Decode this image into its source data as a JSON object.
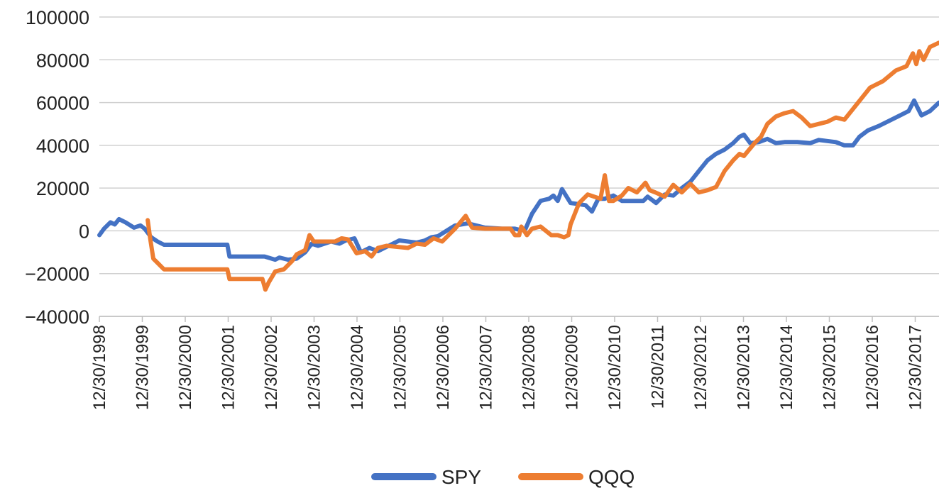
{
  "chart_data": {
    "type": "line",
    "title": "",
    "xlabel": "",
    "ylabel": "",
    "ylim": [
      -40000,
      100000
    ],
    "y_ticks": [
      100000,
      80000,
      60000,
      40000,
      20000,
      0,
      -20000,
      -40000
    ],
    "y_tick_labels": [
      "100000",
      "80000",
      "60000",
      "40000",
      "20000",
      "0",
      "−20000",
      "−40000"
    ],
    "x_tick_labels": [
      "12/30/1998",
      "12/30/1999",
      "12/30/2000",
      "12/30/2001",
      "12/30/2002",
      "12/30/2003",
      "12/30/2004",
      "12/30/2005",
      "12/30/2006",
      "12/30/2007",
      "12/30/2008",
      "12/30/2009",
      "12/30/2010",
      "12/30/2011",
      "12/30/2012",
      "12/30/2013",
      "12/30/2014",
      "12/30/2015",
      "12/30/2016",
      "12/30/2017"
    ],
    "xlim": [
      1998.99,
      2018.61
    ],
    "grid": true,
    "legend_position": "bottom",
    "series": [
      {
        "name": "SPY",
        "color": "#4472C4",
        "x": [
          1998.99,
          1999.1,
          1999.25,
          1999.35,
          1999.45,
          1999.6,
          1999.8,
          1999.95,
          2000.05,
          2000.2,
          2000.35,
          2000.5,
          2001.0,
          2001.5,
          2001.98,
          2002.03,
          2002.3,
          2002.6,
          2002.85,
          2003.1,
          2003.2,
          2003.4,
          2003.6,
          2003.8,
          2003.95,
          2004.1,
          2004.4,
          2004.6,
          2004.75,
          2004.95,
          2005.1,
          2005.3,
          2005.5,
          2005.8,
          2006.0,
          2006.2,
          2006.4,
          2006.6,
          2006.75,
          2006.9,
          2007.1,
          2007.3,
          2007.6,
          2008.0,
          2008.4,
          2008.7,
          2008.8,
          2008.95,
          2009.1,
          2009.3,
          2009.5,
          2009.6,
          2009.7,
          2009.8,
          2010.0,
          2010.2,
          2010.35,
          2010.5,
          2010.65,
          2010.8,
          2011.0,
          2011.2,
          2011.4,
          2011.55,
          2011.7,
          2011.8,
          2012.0,
          2012.2,
          2012.4,
          2012.6,
          2012.8,
          2013.0,
          2013.2,
          2013.4,
          2013.6,
          2013.8,
          2013.95,
          2014.05,
          2014.2,
          2014.4,
          2014.6,
          2014.8,
          2015.0,
          2015.3,
          2015.6,
          2015.8,
          2016.0,
          2016.2,
          2016.4,
          2016.6,
          2016.75,
          2016.95,
          2017.2,
          2017.5,
          2017.9,
          2018.03,
          2018.1,
          2018.2,
          2018.4,
          2018.61
        ],
        "values": [
          -2000,
          1000,
          4000,
          3000,
          5500,
          4000,
          1500,
          2500,
          1000,
          -3000,
          -5000,
          -6500,
          -6500,
          -6500,
          -6500,
          -12000,
          -12000,
          -12000,
          -12000,
          -13500,
          -12500,
          -13500,
          -13000,
          -10000,
          -6000,
          -7000,
          -5000,
          -6000,
          -4500,
          -3500,
          -10000,
          -8000,
          -9500,
          -6500,
          -4500,
          -5000,
          -5500,
          -4500,
          -3000,
          -2500,
          0,
          2500,
          3500,
          1500,
          1000,
          1000,
          500,
          1000,
          8000,
          14000,
          15000,
          16500,
          14000,
          19500,
          13000,
          12500,
          12000,
          9000,
          15000,
          15000,
          16500,
          14000,
          14000,
          14000,
          14000,
          16000,
          13000,
          17000,
          16500,
          20000,
          23000,
          28000,
          33000,
          36000,
          38000,
          41000,
          44000,
          45000,
          41000,
          41500,
          43000,
          41000,
          41500,
          41500,
          41000,
          42500,
          42000,
          41500,
          40000,
          40000,
          44000,
          47000,
          49000,
          52000,
          56000,
          61000,
          58000,
          54000,
          56000,
          60000
        ]
      },
      {
        "name": "QQQ",
        "color": "#ED7D31",
        "x": [
          2000.12,
          2000.18,
          2000.25,
          2000.35,
          2000.5,
          2001.0,
          2001.5,
          2001.98,
          2002.03,
          2002.3,
          2002.6,
          2002.8,
          2002.87,
          2002.95,
          2003.1,
          2003.3,
          2003.5,
          2003.6,
          2003.8,
          2003.9,
          2004.0,
          2004.2,
          2004.5,
          2004.65,
          2004.8,
          2005.0,
          2005.2,
          2005.35,
          2005.5,
          2005.7,
          2005.95,
          2006.2,
          2006.4,
          2006.6,
          2006.8,
          2007.0,
          2007.3,
          2007.55,
          2007.7,
          2008.0,
          2008.3,
          2008.6,
          2008.7,
          2008.8,
          2008.85,
          2008.98,
          2009.1,
          2009.3,
          2009.55,
          2009.7,
          2009.85,
          2009.95,
          2010.0,
          2010.2,
          2010.4,
          2010.55,
          2010.7,
          2010.8,
          2010.9,
          2011.0,
          2011.2,
          2011.35,
          2011.55,
          2011.75,
          2011.85,
          2011.98,
          2012.2,
          2012.4,
          2012.6,
          2012.8,
          2013.0,
          2013.2,
          2013.4,
          2013.6,
          2013.8,
          2013.95,
          2014.05,
          2014.3,
          2014.45,
          2014.6,
          2014.8,
          2015.0,
          2015.2,
          2015.4,
          2015.6,
          2015.8,
          2016.0,
          2016.2,
          2016.4,
          2016.6,
          2016.8,
          2017.0,
          2017.3,
          2017.6,
          2017.85,
          2018.0,
          2018.08,
          2018.15,
          2018.25,
          2018.4,
          2018.61
        ],
        "values": [
          5000,
          -4000,
          -13000,
          -15000,
          -18000,
          -18000,
          -18000,
          -18000,
          -22500,
          -22500,
          -22500,
          -22500,
          -27500,
          -24000,
          -19000,
          -18000,
          -14000,
          -11000,
          -9000,
          -2000,
          -5000,
          -5000,
          -5000,
          -3500,
          -4000,
          -10500,
          -9500,
          -12000,
          -8000,
          -7000,
          -7500,
          -8000,
          -6000,
          -6500,
          -3500,
          -5000,
          1000,
          7000,
          1500,
          1000,
          1000,
          1000,
          -2000,
          -2000,
          2000,
          -2000,
          1000,
          2000,
          -2000,
          -2000,
          -3000,
          -2000,
          3000,
          13000,
          17000,
          16000,
          15000,
          26000,
          14000,
          14000,
          16500,
          20000,
          18000,
          22500,
          19000,
          18000,
          16000,
          21500,
          18000,
          22000,
          18000,
          19000,
          20500,
          28000,
          33000,
          36000,
          35000,
          41000,
          44000,
          50000,
          53500,
          55000,
          56000,
          53000,
          49000,
          50000,
          51000,
          53000,
          52000,
          57000,
          62000,
          67000,
          70000,
          75000,
          77000,
          83000,
          78000,
          84000,
          80000,
          86000,
          88000
        ]
      }
    ]
  }
}
